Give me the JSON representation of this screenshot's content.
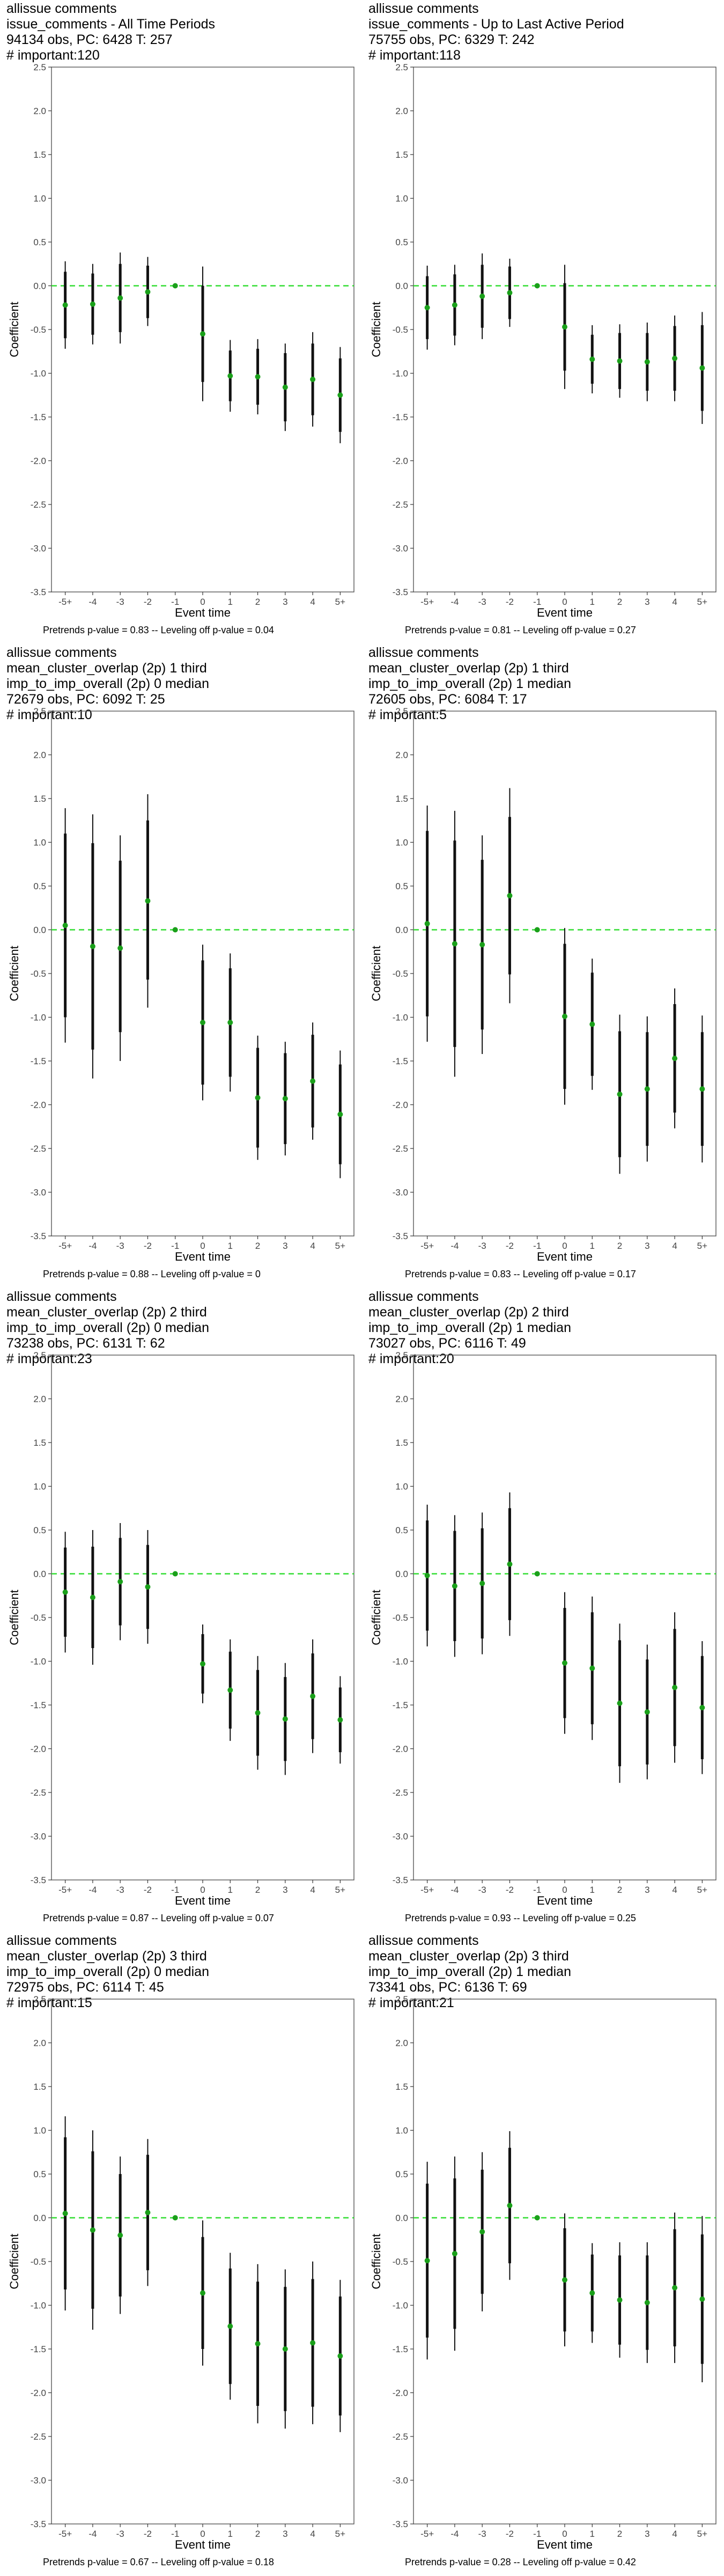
{
  "figure": {
    "xlabel": "Event time",
    "ylabel": "Coefficient",
    "xticks": [
      "-5+",
      "-4",
      "-3",
      "-2",
      "-1",
      "0",
      "1",
      "2",
      "3",
      "4",
      "5+"
    ],
    "yticks": [
      2.5,
      2.0,
      1.5,
      1.0,
      0.5,
      0.0,
      -0.5,
      -1.0,
      -1.5,
      -2.0,
      -2.5,
      -3.0,
      -3.5
    ],
    "yticks_text": [
      "2.5",
      "2.0",
      "1.5",
      "1.0",
      "0.5",
      "0.0",
      "-0.5",
      "-1.0",
      "-1.5",
      "-2.0",
      "-2.5",
      "-3.0",
      "-3.5"
    ],
    "ylim": [
      -3.5,
      2.5
    ],
    "colors": {
      "point": "#1aa01a",
      "zero_line": "#33dd33",
      "error_bar": "#111111",
      "frame": "#555555"
    }
  },
  "chart_data": [
    {
      "type": "scatter",
      "title": [
        "allissue comments",
        "issue_comments - All Time Periods",
        "94134 obs, PC: 6428 T: 257",
        "# important:120"
      ],
      "footer": "Pretrends p-value = 0.83 -- Leveling off p-value = 0.04",
      "x": [
        "-5+",
        "-4",
        "-3",
        "-2",
        "-1",
        "0",
        "1",
        "2",
        "3",
        "4",
        "5+"
      ],
      "y": [
        -0.22,
        -0.21,
        -0.14,
        -0.07,
        0.0,
        -0.55,
        -1.03,
        -1.04,
        -1.16,
        -1.07,
        -1.25
      ],
      "ci95_lo": [
        -0.72,
        -0.67,
        -0.66,
        -0.46,
        0.0,
        -1.32,
        -1.44,
        -1.47,
        -1.66,
        -1.61,
        -1.8
      ],
      "ci95_hi": [
        0.28,
        0.25,
        0.38,
        0.33,
        0.0,
        0.22,
        -0.62,
        -0.61,
        -0.66,
        -0.53,
        -0.7
      ],
      "ci90_lo": [
        -0.6,
        -0.56,
        -0.53,
        -0.37,
        0.0,
        -1.1,
        -1.32,
        -1.36,
        -1.55,
        -1.48,
        -1.67
      ],
      "ci90_hi": [
        0.16,
        0.14,
        0.25,
        0.23,
        0.0,
        0.0,
        -0.74,
        -0.72,
        -0.77,
        -0.66,
        -0.83
      ]
    },
    {
      "type": "scatter",
      "title": [
        "allissue comments",
        "issue_comments - Up to Last Active Period",
        "75755 obs, PC: 6329 T: 242",
        "# important:118"
      ],
      "footer": "Pretrends p-value = 0.81 -- Leveling off p-value = 0.27",
      "x": [
        "-5+",
        "-4",
        "-3",
        "-2",
        "-1",
        "0",
        "1",
        "2",
        "3",
        "4",
        "5+"
      ],
      "y": [
        -0.25,
        -0.22,
        -0.12,
        -0.08,
        0.0,
        -0.47,
        -0.84,
        -0.86,
        -0.87,
        -0.83,
        -0.94
      ],
      "ci95_lo": [
        -0.73,
        -0.68,
        -0.61,
        -0.47,
        0.0,
        -1.18,
        -1.23,
        -1.28,
        -1.32,
        -1.32,
        -1.58
      ],
      "ci95_hi": [
        0.23,
        0.24,
        0.37,
        0.31,
        0.0,
        0.24,
        -0.45,
        -0.44,
        -0.42,
        -0.34,
        -0.3
      ],
      "ci90_lo": [
        -0.61,
        -0.57,
        -0.48,
        -0.38,
        0.0,
        -0.97,
        -1.12,
        -1.18,
        -1.2,
        -1.2,
        -1.43
      ],
      "ci90_hi": [
        0.11,
        0.13,
        0.24,
        0.22,
        0.0,
        0.03,
        -0.56,
        -0.54,
        -0.54,
        -0.46,
        -0.45
      ]
    },
    {
      "type": "scatter",
      "title": [
        "allissue comments",
        "mean_cluster_overlap (2p) 1 third",
        "imp_to_imp_overall (2p) 0 median",
        "72679 obs, PC: 6092 T: 25",
        "# important:10"
      ],
      "footer": "Pretrends p-value = 0.88 -- Leveling off p-value = 0",
      "x": [
        "-5+",
        "-4",
        "-3",
        "-2",
        "-1",
        "0",
        "1",
        "2",
        "3",
        "4",
        "5+"
      ],
      "y": [
        0.05,
        -0.19,
        -0.21,
        0.33,
        0.0,
        -1.06,
        -1.06,
        -1.92,
        -1.93,
        -1.73,
        -2.11
      ],
      "ci95_lo": [
        -1.29,
        -1.7,
        -1.5,
        -0.89,
        0.0,
        -1.95,
        -1.85,
        -2.63,
        -2.58,
        -2.4,
        -2.84
      ],
      "ci95_hi": [
        1.39,
        1.32,
        1.08,
        1.55,
        0.0,
        -0.17,
        -0.27,
        -1.21,
        -1.28,
        -1.06,
        -1.38
      ],
      "ci90_lo": [
        -1.0,
        -1.37,
        -1.17,
        -0.57,
        0.0,
        -1.77,
        -1.68,
        -2.49,
        -2.45,
        -2.26,
        -2.68
      ],
      "ci90_hi": [
        1.1,
        0.99,
        0.79,
        1.25,
        0.0,
        -0.35,
        -0.44,
        -1.35,
        -1.41,
        -1.2,
        -1.54
      ]
    },
    {
      "type": "scatter",
      "title": [
        "allissue comments",
        "mean_cluster_overlap (2p) 1 third",
        "imp_to_imp_overall (2p) 1 median",
        "72605 obs, PC: 6084 T: 17",
        "# important:5"
      ],
      "footer": "Pretrends p-value = 0.83 -- Leveling off p-value = 0.17",
      "x": [
        "-5+",
        "-4",
        "-3",
        "-2",
        "-1",
        "0",
        "1",
        "2",
        "3",
        "4",
        "5+"
      ],
      "y": [
        0.07,
        -0.16,
        -0.17,
        0.39,
        0.0,
        -0.99,
        -1.08,
        -1.88,
        -1.82,
        -1.47,
        -1.82
      ],
      "ci95_lo": [
        -1.28,
        -1.68,
        -1.42,
        -0.84,
        0.0,
        -2.0,
        -1.83,
        -2.79,
        -2.65,
        -2.27,
        -2.66
      ],
      "ci95_hi": [
        1.42,
        1.36,
        1.08,
        1.62,
        0.0,
        0.02,
        -0.33,
        -0.97,
        -0.99,
        -0.67,
        -0.98
      ],
      "ci90_lo": [
        -0.99,
        -1.34,
        -1.14,
        -0.51,
        0.0,
        -1.82,
        -1.67,
        -2.6,
        -2.47,
        -2.09,
        -2.47
      ],
      "ci90_hi": [
        1.13,
        1.02,
        0.8,
        1.29,
        0.0,
        -0.16,
        -0.49,
        -1.16,
        -1.17,
        -0.85,
        -1.17
      ]
    },
    {
      "type": "scatter",
      "title": [
        "allissue comments",
        "mean_cluster_overlap (2p) 2 third",
        "imp_to_imp_overall (2p) 0 median",
        "73238 obs, PC: 6131 T: 62",
        "# important:23"
      ],
      "footer": "Pretrends p-value = 0.87 -- Leveling off p-value = 0.07",
      "x": [
        "-5+",
        "-4",
        "-3",
        "-2",
        "-1",
        "0",
        "1",
        "2",
        "3",
        "4",
        "5+"
      ],
      "y": [
        -0.21,
        -0.27,
        -0.09,
        -0.15,
        0.0,
        -1.03,
        -1.33,
        -1.59,
        -1.66,
        -1.4,
        -1.67
      ],
      "ci95_lo": [
        -0.9,
        -1.04,
        -0.76,
        -0.8,
        0.0,
        -1.48,
        -1.91,
        -2.24,
        -2.3,
        -2.05,
        -2.17
      ],
      "ci95_hi": [
        0.48,
        0.5,
        0.58,
        0.5,
        0.0,
        -0.58,
        -0.75,
        -0.94,
        -1.02,
        -0.75,
        -1.17
      ],
      "ci90_lo": [
        -0.72,
        -0.85,
        -0.59,
        -0.63,
        0.0,
        -1.37,
        -1.77,
        -2.08,
        -2.14,
        -1.89,
        -2.04
      ],
      "ci90_hi": [
        0.3,
        0.31,
        0.41,
        0.33,
        0.0,
        -0.69,
        -0.89,
        -1.1,
        -1.18,
        -0.91,
        -1.3
      ]
    },
    {
      "type": "scatter",
      "title": [
        "allissue comments",
        "mean_cluster_overlap (2p) 2 third",
        "imp_to_imp_overall (2p) 1 median",
        "73027 obs, PC: 6116 T: 49",
        "# important:20"
      ],
      "footer": "Pretrends p-value = 0.93 -- Leveling off p-value = 0.25",
      "x": [
        "-5+",
        "-4",
        "-3",
        "-2",
        "-1",
        "0",
        "1",
        "2",
        "3",
        "4",
        "5+"
      ],
      "y": [
        -0.02,
        -0.14,
        -0.11,
        0.11,
        0.0,
        -1.02,
        -1.08,
        -1.48,
        -1.58,
        -1.3,
        -1.53
      ],
      "ci95_lo": [
        -0.83,
        -0.95,
        -0.92,
        -0.71,
        0.0,
        -1.83,
        -1.9,
        -2.39,
        -2.35,
        -2.16,
        -2.29
      ],
      "ci95_hi": [
        0.79,
        0.67,
        0.7,
        0.93,
        0.0,
        -0.21,
        -0.26,
        -0.57,
        -0.81,
        -0.44,
        -0.77
      ],
      "ci90_lo": [
        -0.65,
        -0.77,
        -0.74,
        -0.53,
        0.0,
        -1.65,
        -1.72,
        -2.2,
        -2.18,
        -1.97,
        -2.12
      ],
      "ci90_hi": [
        0.61,
        0.49,
        0.52,
        0.75,
        0.0,
        -0.39,
        -0.44,
        -0.76,
        -0.98,
        -0.63,
        -0.94
      ]
    },
    {
      "type": "scatter",
      "title": [
        "allissue comments",
        "mean_cluster_overlap (2p) 3 third",
        "imp_to_imp_overall (2p) 0 median",
        "72975 obs, PC: 6114 T: 45",
        "# important:15"
      ],
      "footer": "Pretrends p-value = 0.67 -- Leveling off p-value = 0.18",
      "x": [
        "-5+",
        "-4",
        "-3",
        "-2",
        "-1",
        "0",
        "1",
        "2",
        "3",
        "4",
        "5+"
      ],
      "y": [
        0.05,
        -0.14,
        -0.2,
        0.06,
        0.0,
        -0.86,
        -1.24,
        -1.44,
        -1.5,
        -1.43,
        -1.58
      ],
      "ci95_lo": [
        -1.06,
        -1.28,
        -1.1,
        -0.78,
        0.0,
        -1.69,
        -2.08,
        -2.35,
        -2.41,
        -2.36,
        -2.45
      ],
      "ci95_hi": [
        1.16,
        1.0,
        0.7,
        0.9,
        0.0,
        -0.03,
        -0.4,
        -0.53,
        -0.59,
        -0.5,
        -0.71
      ],
      "ci90_lo": [
        -0.82,
        -1.04,
        -0.9,
        -0.6,
        0.0,
        -1.5,
        -1.9,
        -2.15,
        -2.21,
        -2.16,
        -2.26
      ],
      "ci90_hi": [
        0.92,
        0.76,
        0.5,
        0.72,
        0.0,
        -0.22,
        -0.58,
        -0.73,
        -0.79,
        -0.7,
        -0.9
      ]
    },
    {
      "type": "scatter",
      "title": [
        "allissue comments",
        "mean_cluster_overlap (2p) 3 third",
        "imp_to_imp_overall (2p) 1 median",
        "73341 obs, PC: 6136 T: 69",
        "# important:21"
      ],
      "footer": "Pretrends p-value = 0.28 -- Leveling off p-value = 0.42",
      "x": [
        "-5+",
        "-4",
        "-3",
        "-2",
        "-1",
        "0",
        "1",
        "2",
        "3",
        "4",
        "5+"
      ],
      "y": [
        -0.49,
        -0.41,
        -0.16,
        0.14,
        0.0,
        -0.71,
        -0.86,
        -0.94,
        -0.97,
        -0.8,
        -0.93
      ],
      "ci95_lo": [
        -1.62,
        -1.52,
        -1.07,
        -0.71,
        0.0,
        -1.47,
        -1.43,
        -1.6,
        -1.66,
        -1.66,
        -1.88
      ],
      "ci95_hi": [
        0.64,
        0.7,
        0.75,
        0.99,
        0.0,
        0.05,
        -0.29,
        -0.28,
        -0.28,
        0.06,
        0.02
      ],
      "ci90_lo": [
        -1.37,
        -1.27,
        -0.87,
        -0.52,
        0.0,
        -1.3,
        -1.3,
        -1.45,
        -1.51,
        -1.47,
        -1.67
      ],
      "ci90_hi": [
        0.39,
        0.45,
        0.55,
        0.8,
        0.0,
        -0.12,
        -0.42,
        -0.43,
        -0.43,
        -0.13,
        -0.19
      ]
    }
  ]
}
